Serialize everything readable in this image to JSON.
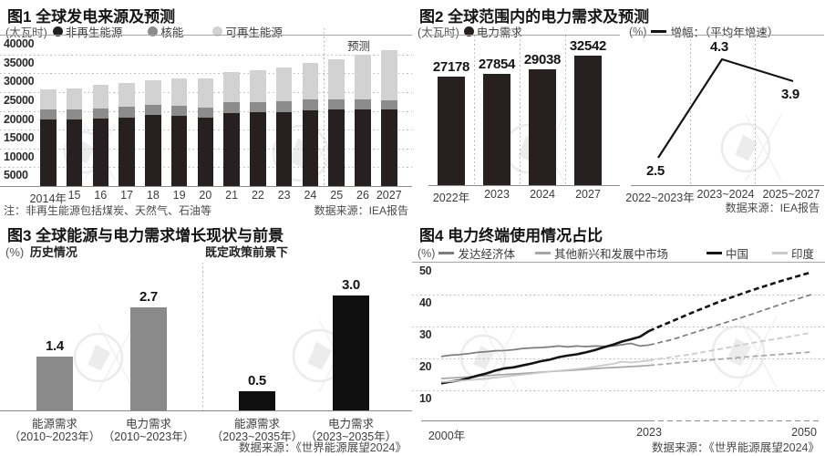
{
  "fig1": {
    "title": "图1 全球发电来源及预测",
    "unit": "(太瓦时)",
    "legend": [
      {
        "label": "非再生能源",
        "color": "#262021"
      },
      {
        "label": "核能",
        "color": "#8c8c8c"
      },
      {
        "label": "可再生能源",
        "color": "#d2d2d2"
      }
    ],
    "forecast_label": "预测",
    "note": "注：非再生能源包括煤炭、天然气、石油等",
    "source": "数据来源：IEA报告"
  },
  "fig2": {
    "title": "图2 全球范围内的电力需求及预测",
    "bar_unit": "(太瓦时)",
    "bar_legend_label": "电力需求",
    "bar_legend_color": "#262021",
    "line_unit": "(%)",
    "line_legend_label": "增幅：（平均年增速）",
    "line_color": "#141414",
    "source": "数据来源：IEA报告"
  },
  "fig3": {
    "title": "图3 全球能源与电力需求增长现状与前景",
    "unit": "(%)",
    "section_left": "历史情况",
    "section_right": "既定政策前景下",
    "source": "数据来源：《世界能源展望2024》"
  },
  "fig4": {
    "title": "图4 电力终端使用情况占比",
    "unit": "(%)",
    "legend": [
      {
        "label": "发达经济体",
        "color": "#7d7d7d"
      },
      {
        "label": "其他新兴和发展中市场",
        "color": "#a6a6a6"
      },
      {
        "label": "中国",
        "color": "#141414"
      },
      {
        "label": "印度",
        "color": "#c9c9c9"
      }
    ],
    "source": "数据来源：《世界能源展望2024》"
  },
  "chart_data": [
    {
      "id": "fig1",
      "type": "bar",
      "stacked": true,
      "title": "全球发电来源及预测",
      "ylabel": "太瓦时",
      "ylim": [
        0,
        40000
      ],
      "yticks": [
        40000,
        35000,
        30000,
        25000,
        20000,
        15000,
        10000,
        5000
      ],
      "categories": [
        "2014年",
        "15",
        "16",
        "17",
        "18",
        "19",
        "20",
        "21",
        "22",
        "23",
        "24",
        "25",
        "26",
        "2027"
      ],
      "forecast_from_category": "25",
      "series": [
        {
          "name": "非再生能源",
          "color": "#262021",
          "values": [
            17700,
            17700,
            18000,
            18300,
            18900,
            18600,
            18200,
            19400,
            19600,
            19700,
            20200,
            20300,
            20300,
            20300
          ]
        },
        {
          "name": "核能",
          "color": "#8c8c8c",
          "values": [
            2600,
            2600,
            2700,
            2700,
            2700,
            2800,
            2700,
            2900,
            2800,
            2800,
            2900,
            2800,
            2700,
            2600
          ]
        },
        {
          "name": "可再生能源",
          "color": "#d2d2d2",
          "values": [
            5500,
            5700,
            6100,
            6300,
            6600,
            7100,
            7700,
            8000,
            8300,
            8900,
            9700,
            10600,
            11900,
            13200
          ]
        }
      ]
    },
    {
      "id": "fig2-bars",
      "type": "bar",
      "title": "电力需求（太瓦时）",
      "categories": [
        "2022年",
        "2023",
        "2024",
        "2027"
      ],
      "values": [
        27178,
        27854,
        29038,
        32542
      ],
      "labels": [
        "27178",
        "27854",
        "29038",
        "32542"
      ],
      "bar_color": "#262021",
      "ylim": [
        0,
        37500
      ]
    },
    {
      "id": "fig2-line",
      "type": "line",
      "title": "增幅：平均年增速（%）",
      "categories": [
        "2022~2023年",
        "2023~2024",
        "2025~2027"
      ],
      "values": [
        2.5,
        4.3,
        3.9
      ],
      "labels": [
        "2.5",
        "4.3",
        "3.9"
      ],
      "line_color": "#141414"
    },
    {
      "id": "fig3",
      "type": "bar",
      "title": "全球能源与电力需求增长现状与前景（%，年均增速）",
      "groups": [
        {
          "label1": "能源需求",
          "label2": "（2010~2023年）",
          "value": 1.4,
          "label": "1.4",
          "color": "#8a8a8a",
          "section": "历史情况"
        },
        {
          "label1": "电力需求",
          "label2": "（2010~2023年）",
          "value": 2.7,
          "label": "2.7",
          "color": "#8a8a8a",
          "section": "历史情况"
        },
        {
          "label1": "能源需求",
          "label2": "（2023~2035年）",
          "value": 0.5,
          "label": "0.5",
          "color": "#0f0f0f",
          "section": "既定政策前景下"
        },
        {
          "label1": "电力需求",
          "label2": "（2023~2035年）",
          "value": 3.0,
          "label": "3.0",
          "color": "#0f0f0f",
          "section": "既定政策前景下"
        }
      ]
    },
    {
      "id": "fig4",
      "type": "line",
      "title": "电力终端使用情况占比（%）",
      "ylim": [
        0,
        50
      ],
      "yticks": [
        50,
        40,
        30,
        20,
        10
      ],
      "xticks": [
        "2000年",
        "2023",
        "2050"
      ],
      "x_range": [
        2000,
        2050
      ],
      "solid_until": 2023,
      "series": [
        {
          "name": "发达经济体",
          "color": "#7d7d7d",
          "width": 1.7,
          "points": [
            [
              2000,
              20.6
            ],
            [
              2001,
              21.0
            ],
            [
              2002,
              21.2
            ],
            [
              2003,
              21.5
            ],
            [
              2004,
              21.9
            ],
            [
              2005,
              22.1
            ],
            [
              2006,
              22.4
            ],
            [
              2007,
              22.5
            ],
            [
              2008,
              22.7
            ],
            [
              2009,
              23.1
            ],
            [
              2010,
              23.3
            ],
            [
              2011,
              23.4
            ],
            [
              2012,
              23.6
            ],
            [
              2013,
              23.9
            ],
            [
              2014,
              23.6
            ],
            [
              2015,
              23.9
            ],
            [
              2016,
              23.7
            ],
            [
              2017,
              23.9
            ],
            [
              2018,
              23.8
            ],
            [
              2019,
              23.9
            ],
            [
              2020,
              24.3
            ],
            [
              2021,
              24.7
            ],
            [
              2022,
              23.9
            ],
            [
              2023,
              24.2
            ],
            [
              2027,
              26.0
            ],
            [
              2030,
              27.8
            ],
            [
              2035,
              30.8
            ],
            [
              2040,
              33.8
            ],
            [
              2045,
              37.0
            ],
            [
              2050,
              40.0
            ]
          ]
        },
        {
          "name": "其他新兴和发展中市场",
          "color": "#a6a6a6",
          "width": 1.7,
          "points": [
            [
              2000,
              13.7
            ],
            [
              2002,
              14.0
            ],
            [
              2004,
              14.4
            ],
            [
              2006,
              14.8
            ],
            [
              2008,
              15.1
            ],
            [
              2010,
              15.5
            ],
            [
              2012,
              15.9
            ],
            [
              2014,
              16.2
            ],
            [
              2016,
              16.6
            ],
            [
              2018,
              17.0
            ],
            [
              2020,
              17.3
            ],
            [
              2022,
              17.6
            ],
            [
              2023,
              17.8
            ],
            [
              2030,
              19.0
            ],
            [
              2040,
              20.6
            ],
            [
              2050,
              22.0
            ]
          ]
        },
        {
          "name": "中国",
          "color": "#141414",
          "width": 2.6,
          "points": [
            [
              2000,
              12.2
            ],
            [
              2001,
              12.7
            ],
            [
              2002,
              13.1
            ],
            [
              2003,
              13.8
            ],
            [
              2004,
              14.6
            ],
            [
              2005,
              15.3
            ],
            [
              2006,
              16.2
            ],
            [
              2007,
              16.9
            ],
            [
              2008,
              17.2
            ],
            [
              2009,
              17.8
            ],
            [
              2010,
              18.4
            ],
            [
              2011,
              19.1
            ],
            [
              2012,
              19.6
            ],
            [
              2013,
              20.4
            ],
            [
              2014,
              20.9
            ],
            [
              2015,
              21.3
            ],
            [
              2016,
              21.9
            ],
            [
              2017,
              22.6
            ],
            [
              2018,
              23.5
            ],
            [
              2019,
              24.3
            ],
            [
              2020,
              25.3
            ],
            [
              2021,
              26.0
            ],
            [
              2022,
              26.8
            ],
            [
              2023,
              28.6
            ],
            [
              2026,
              31.0
            ],
            [
              2030,
              34.2
            ],
            [
              2035,
              38.0
            ],
            [
              2040,
              41.3
            ],
            [
              2045,
              44.3
            ],
            [
              2050,
              47.0
            ]
          ]
        },
        {
          "name": "印度",
          "color": "#c9c9c9",
          "width": 1.7,
          "points": [
            [
              2000,
              12.6
            ],
            [
              2002,
              13.0
            ],
            [
              2004,
              13.4
            ],
            [
              2006,
              14.0
            ],
            [
              2008,
              14.6
            ],
            [
              2010,
              15.2
            ],
            [
              2012,
              15.9
            ],
            [
              2014,
              16.4
            ],
            [
              2016,
              17.0
            ],
            [
              2018,
              17.9
            ],
            [
              2019,
              18.3
            ],
            [
              2020,
              19.0
            ],
            [
              2021,
              18.7
            ],
            [
              2022,
              19.0
            ],
            [
              2023,
              19.4
            ],
            [
              2030,
              21.3
            ],
            [
              2035,
              23.0
            ],
            [
              2040,
              24.8
            ],
            [
              2045,
              26.4
            ],
            [
              2050,
              28.0
            ]
          ]
        }
      ]
    }
  ]
}
